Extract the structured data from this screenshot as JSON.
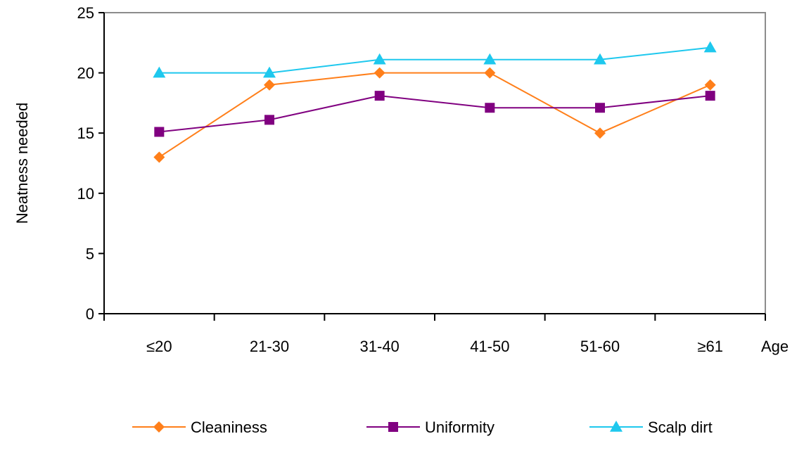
{
  "chart_data": {
    "type": "line",
    "title": "",
    "xlabel": "Age",
    "ylabel": "Neatness needed",
    "categories": [
      "≤20",
      "21-30",
      "31-40",
      "41-50",
      "51-60",
      "≥61"
    ],
    "ylim": [
      0,
      25
    ],
    "yticks": [
      0,
      5,
      10,
      15,
      20,
      25
    ],
    "grid": false,
    "legend_position": "bottom",
    "series": [
      {
        "name": "Cleaniness",
        "values": [
          13,
          19,
          20,
          20,
          15,
          19
        ],
        "color": "#ff7f1a",
        "marker": "diamond"
      },
      {
        "name": "Uniformity",
        "values": [
          15.1,
          16.1,
          18.1,
          17.1,
          17.1,
          18.1
        ],
        "color": "#800080",
        "marker": "square"
      },
      {
        "name": "Scalp dirt",
        "values": [
          20,
          20,
          21.1,
          21.1,
          21.1,
          22.1
        ],
        "color": "#1ec8ee",
        "marker": "triangle"
      }
    ]
  }
}
